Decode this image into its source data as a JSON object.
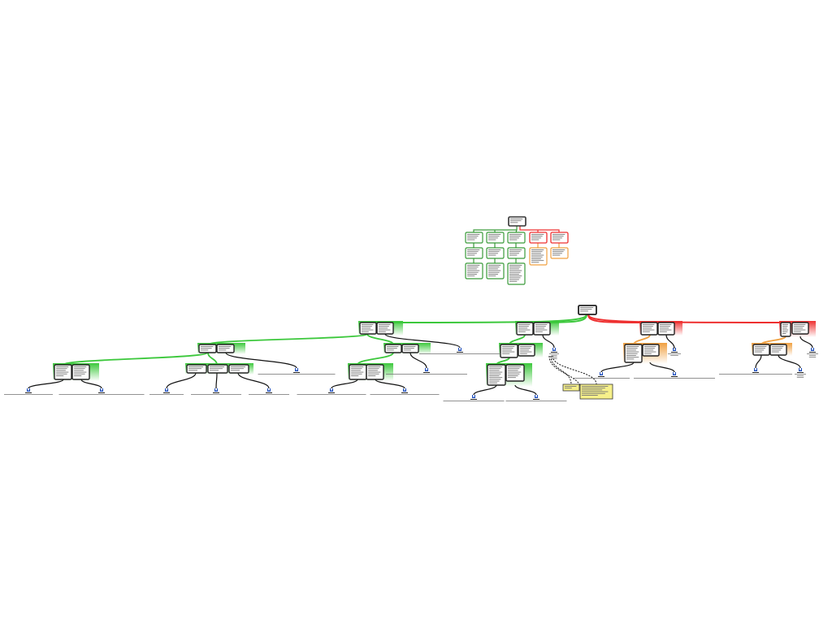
{
  "diagram": {
    "kind": "argument map",
    "colors": {
      "support": "#3cc83c",
      "support_dark": "#3a9a3a",
      "objection": "#ee3030",
      "rebuttal": "#f0a040",
      "premise_border": "#222222",
      "source": "#1f4fbf",
      "note": "#f6f08a",
      "note_border": "#333333",
      "text_placeholder": "#777777"
    },
    "legend_note": ""
  }
}
